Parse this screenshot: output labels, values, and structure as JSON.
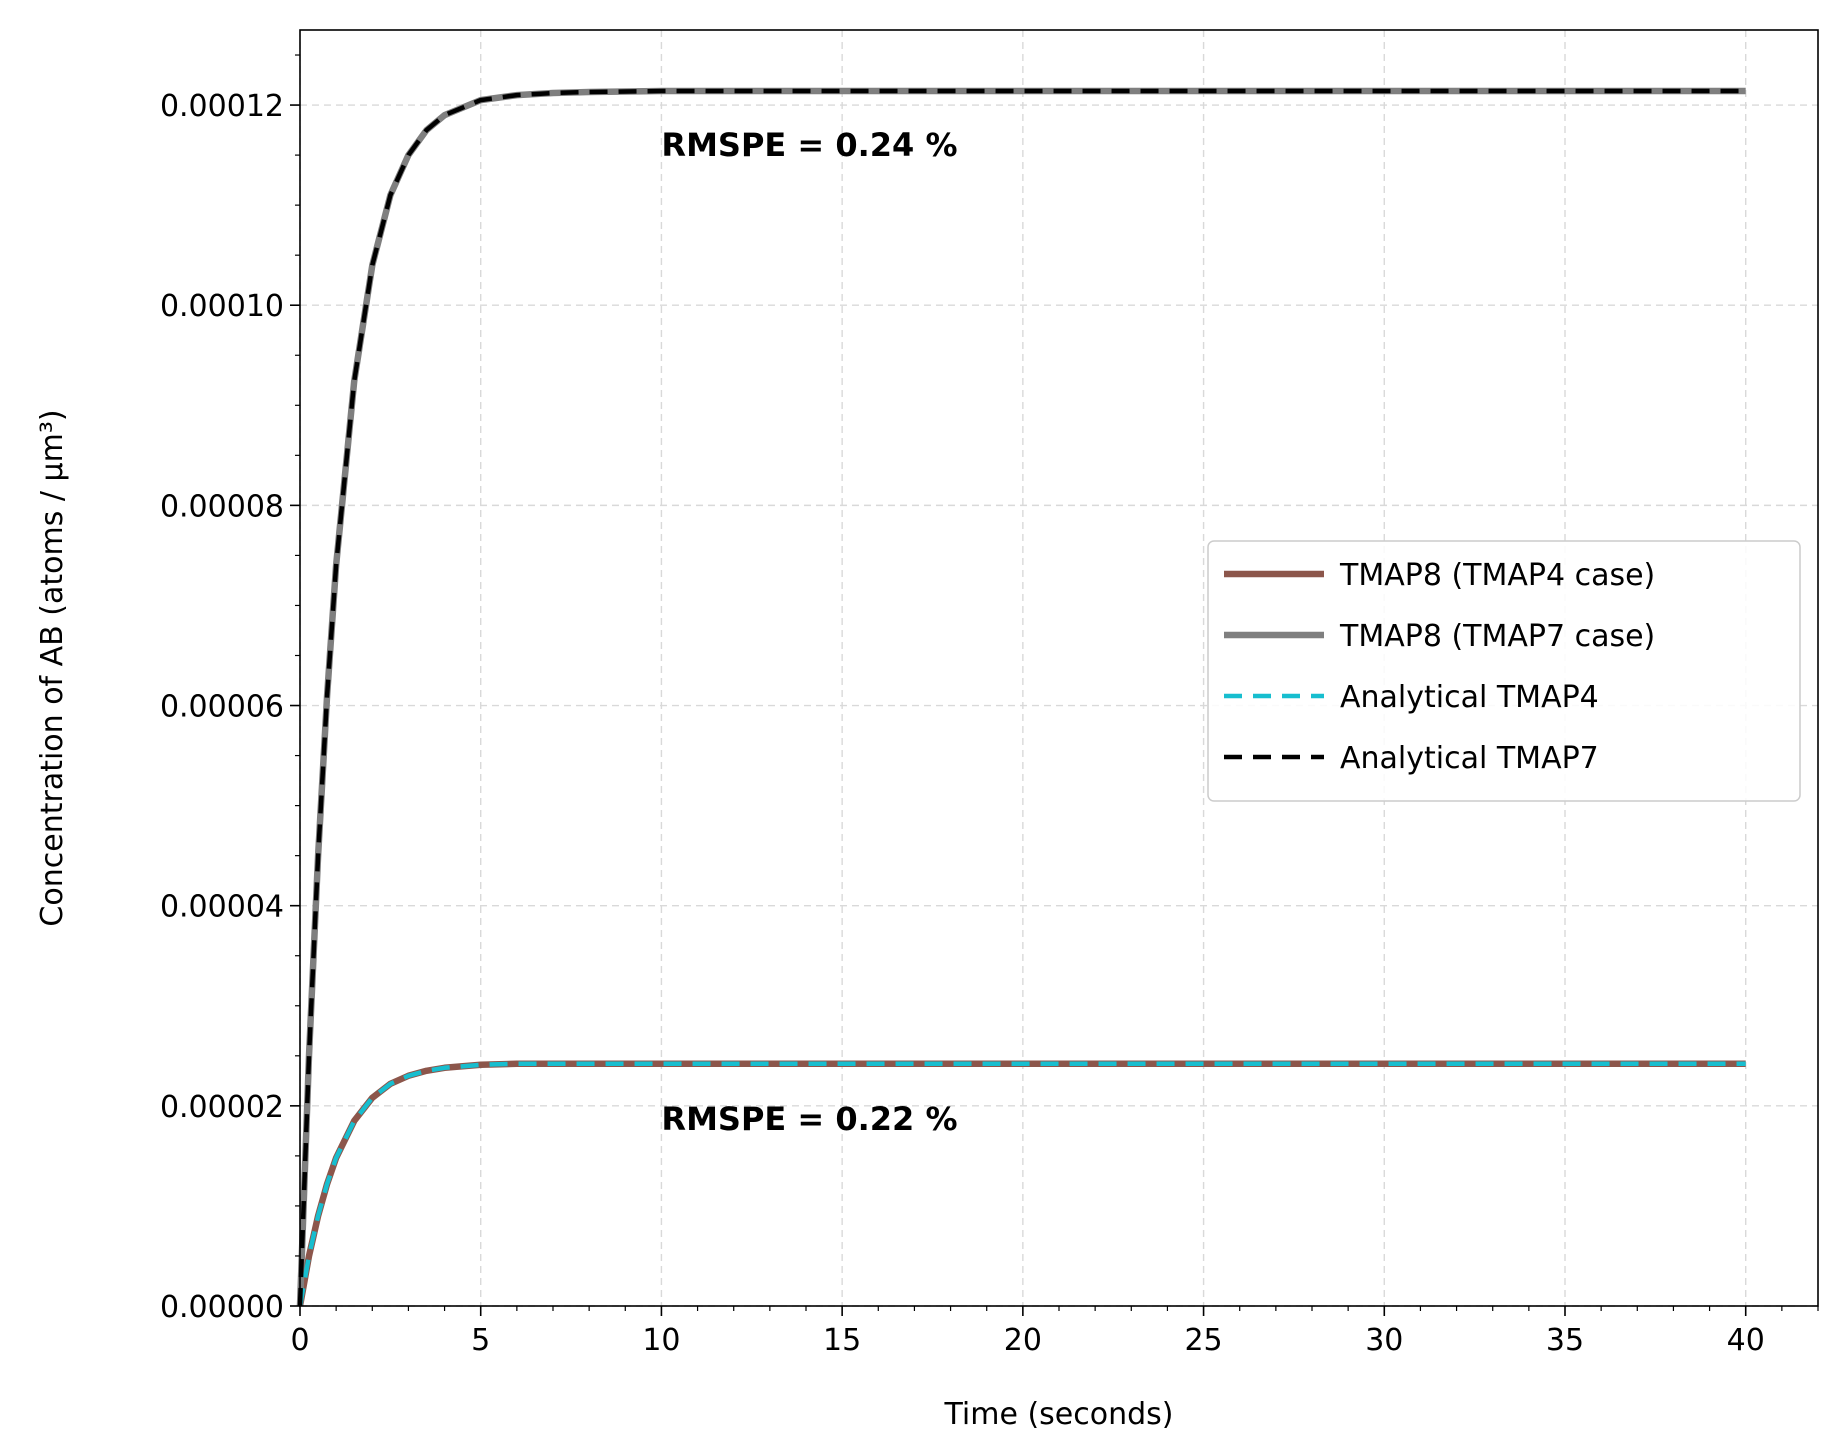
{
  "chart_data": {
    "type": "line",
    "xlabel": "Time (seconds)",
    "ylabel": "Concentration of AB (atoms / μm³)",
    "xlim": [
      0,
      42
    ],
    "ylim": [
      0,
      0.0001275
    ],
    "xticks": [
      0,
      5,
      10,
      15,
      20,
      25,
      30,
      35,
      40
    ],
    "xtick_labels": [
      "0",
      "5",
      "10",
      "15",
      "20",
      "25",
      "30",
      "35",
      "40"
    ],
    "yticks": [
      0,
      2e-05,
      4e-05,
      6e-05,
      8e-05,
      0.0001,
      0.00012
    ],
    "ytick_labels": [
      "0.00000",
      "0.00002",
      "0.00004",
      "0.00006",
      "0.00008",
      "0.00010",
      "0.00012"
    ],
    "grid": true,
    "legend_position": "center-right",
    "x": [
      0,
      0.25,
      0.5,
      0.75,
      1,
      1.5,
      2,
      2.5,
      3,
      3.5,
      4,
      5,
      6,
      7,
      8,
      10,
      12,
      15,
      20,
      25,
      30,
      35,
      40
    ],
    "series": [
      {
        "name": "TMAP8 (TMAP4 case)",
        "color": "#8c564b",
        "style": "solid",
        "values": [
          0,
          5e-06,
          9e-06,
          1.22e-05,
          1.48e-05,
          1.85e-05,
          2.08e-05,
          2.22e-05,
          2.3e-05,
          2.35e-05,
          2.38e-05,
          2.41e-05,
          2.42e-05,
          2.42e-05,
          2.42e-05,
          2.42e-05,
          2.42e-05,
          2.42e-05,
          2.42e-05,
          2.42e-05,
          2.42e-05,
          2.42e-05,
          2.42e-05
        ]
      },
      {
        "name": "TMAP8 (TMAP7 case)",
        "color": "#7f7f7f",
        "style": "solid",
        "values": [
          0,
          2.5e-05,
          4.5e-05,
          6.1e-05,
          7.4e-05,
          9.24e-05,
          0.000104,
          0.000111,
          0.000115,
          0.0001175,
          0.000119,
          0.0001205,
          0.000121,
          0.0001212,
          0.0001213,
          0.0001214,
          0.0001214,
          0.0001214,
          0.0001214,
          0.0001214,
          0.0001214,
          0.0001214,
          0.0001214
        ]
      },
      {
        "name": "Analytical TMAP4",
        "color": "#17becf",
        "style": "dashed",
        "values": [
          0,
          5e-06,
          9e-06,
          1.22e-05,
          1.48e-05,
          1.85e-05,
          2.08e-05,
          2.22e-05,
          2.3e-05,
          2.35e-05,
          2.38e-05,
          2.41e-05,
          2.42e-05,
          2.42e-05,
          2.42e-05,
          2.42e-05,
          2.42e-05,
          2.42e-05,
          2.42e-05,
          2.42e-05,
          2.42e-05,
          2.42e-05,
          2.42e-05
        ]
      },
      {
        "name": "Analytical TMAP7",
        "color": "#000000",
        "style": "dashed",
        "values": [
          0,
          2.5e-05,
          4.5e-05,
          6.1e-05,
          7.4e-05,
          9.24e-05,
          0.000104,
          0.000111,
          0.000115,
          0.0001175,
          0.000119,
          0.0001205,
          0.000121,
          0.0001212,
          0.0001213,
          0.0001214,
          0.0001214,
          0.0001214,
          0.0001214,
          0.0001214,
          0.0001214,
          0.0001214,
          0.0001214
        ]
      }
    ],
    "annotations": [
      {
        "text": "RMSPE = 0.24 %",
        "x": 10,
        "y": 0.000116
      },
      {
        "text": "RMSPE = 0.22 %",
        "x": 10,
        "y": 1.87e-05
      }
    ]
  }
}
